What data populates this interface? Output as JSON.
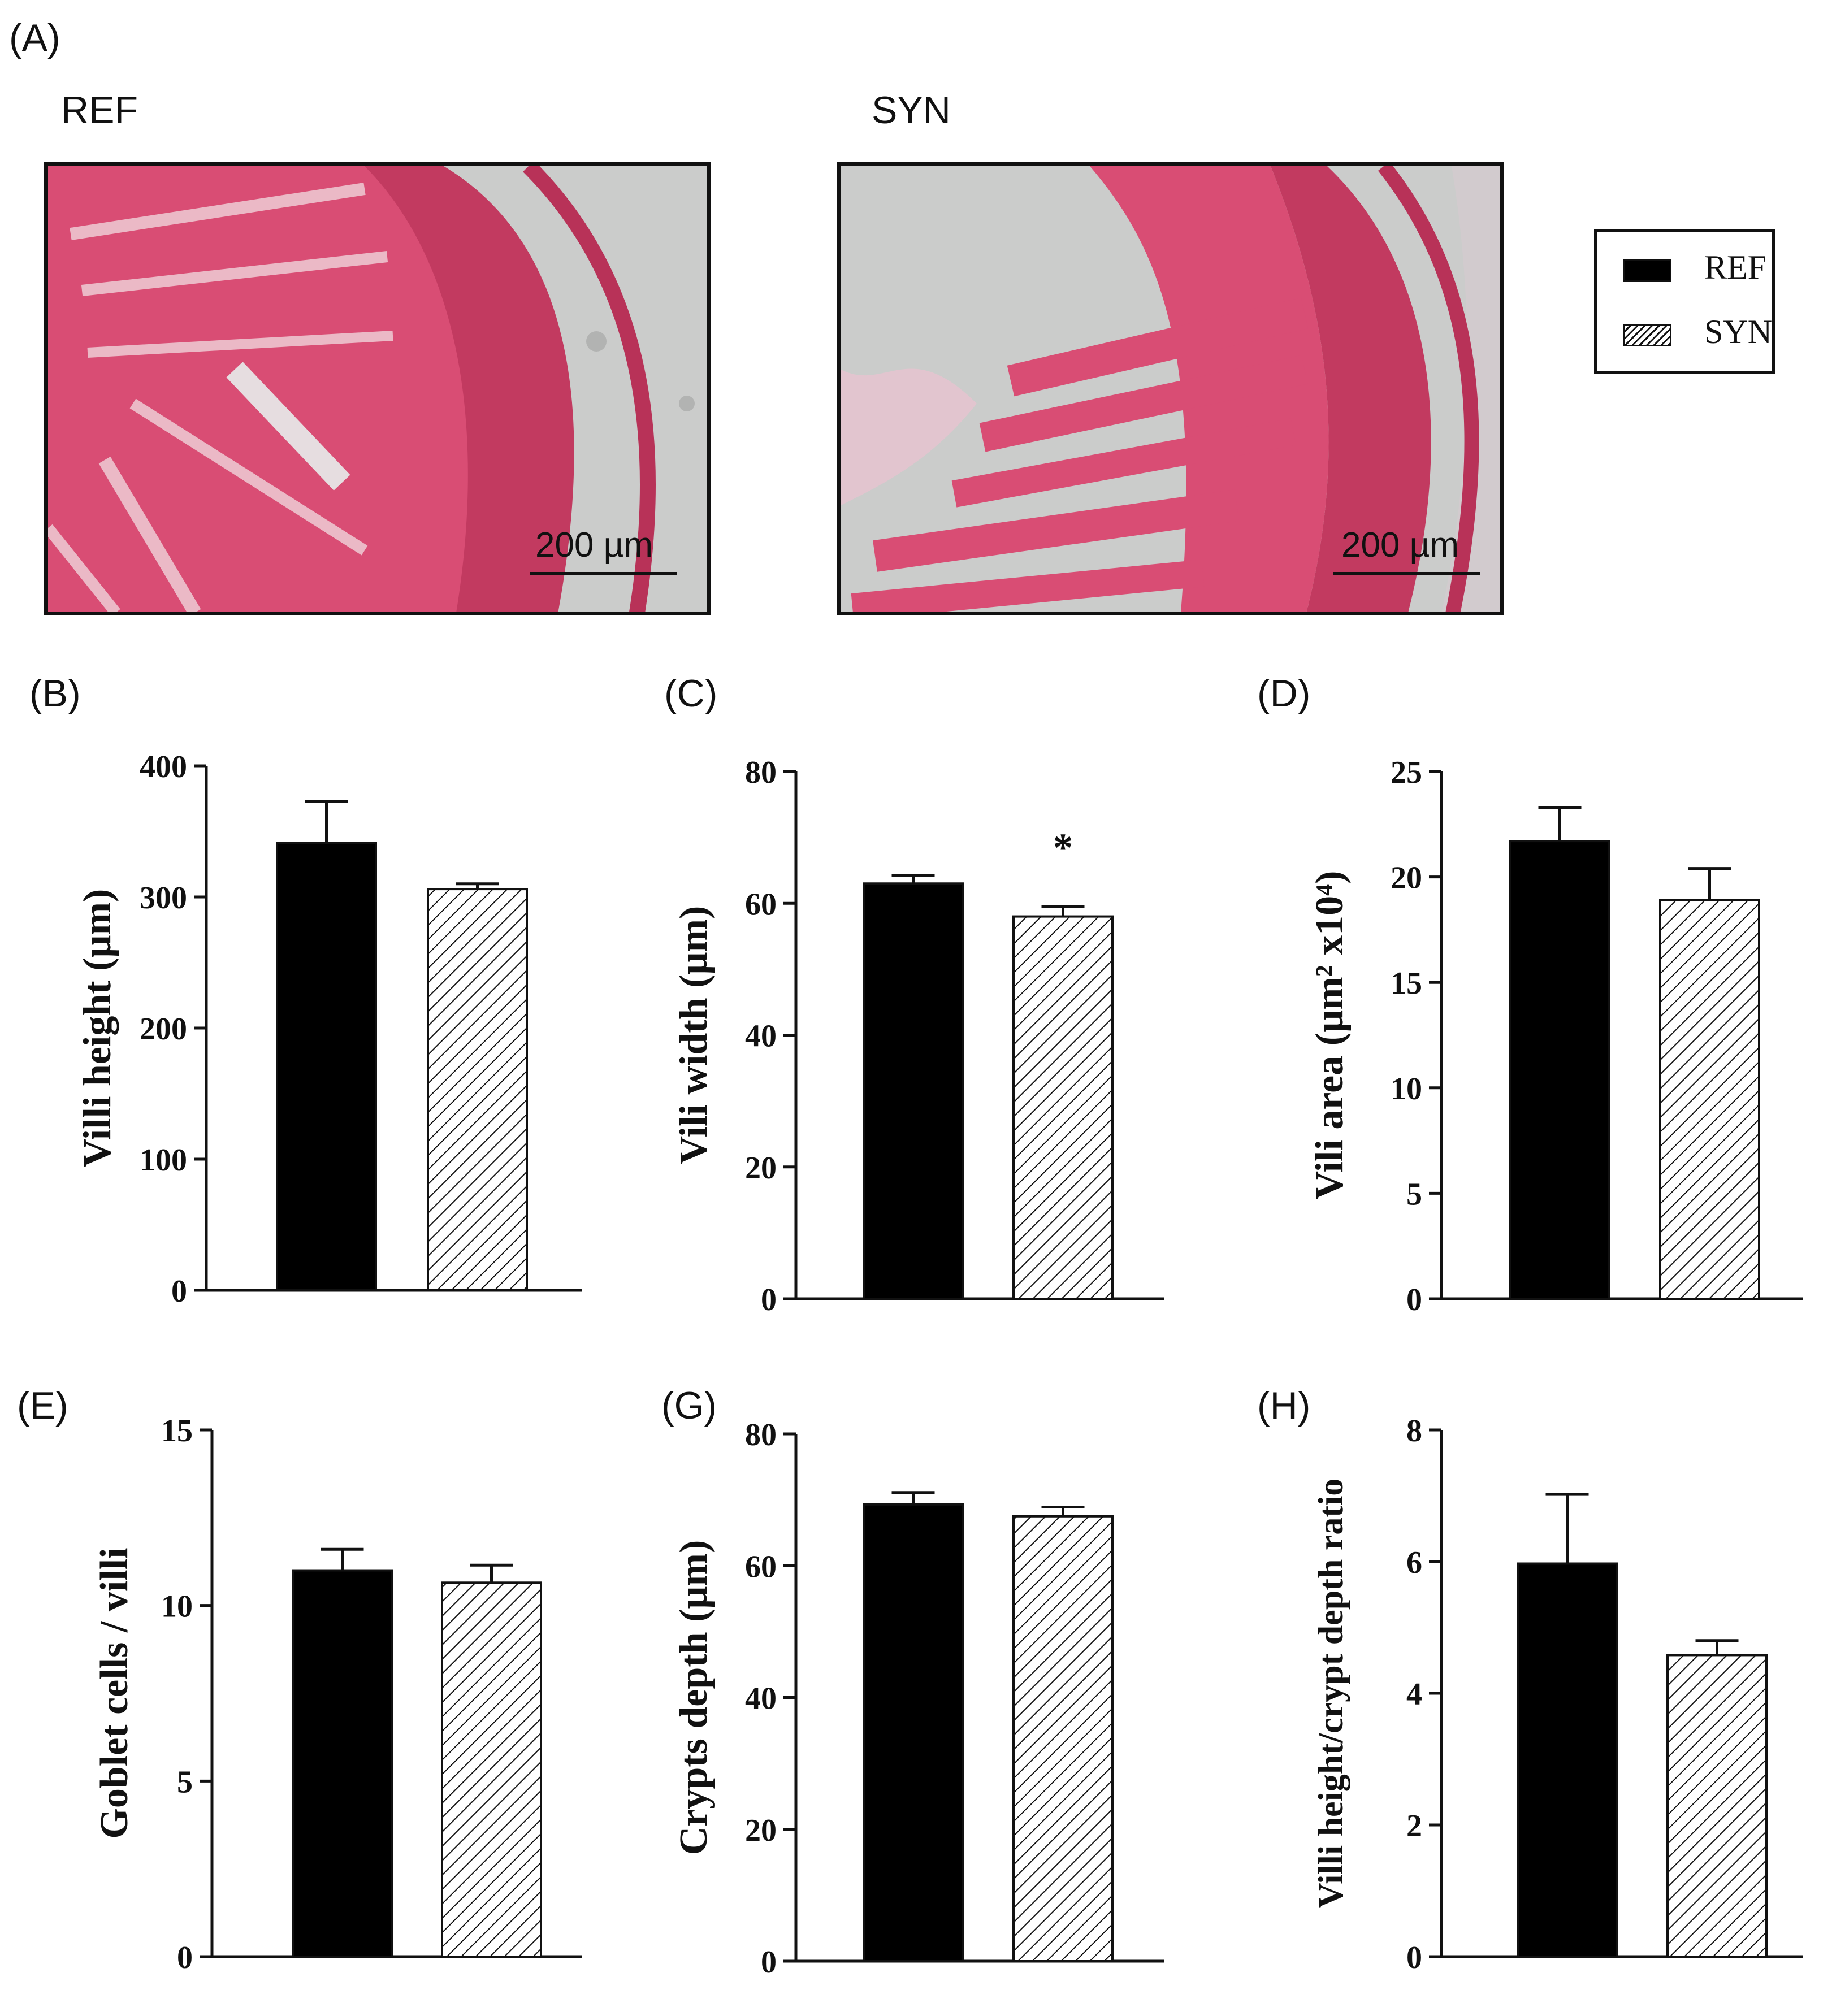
{
  "panel_labels": {
    "a": "(A)",
    "b": "(B)",
    "c": "(C)",
    "d": "(D)",
    "e": "(E)",
    "g": "(G)",
    "h": "(H)"
  },
  "micrographs": {
    "ref": {
      "caption": "REF",
      "scale": "200 µm"
    },
    "syn": {
      "caption": "SYN",
      "scale": "200 µm"
    },
    "tissue_color": "#d8486e",
    "background_color": "#c9cac9"
  },
  "legend": {
    "items": [
      {
        "label": "REF",
        "fill": "solid",
        "color": "#000000"
      },
      {
        "label": "SYN",
        "fill": "hatched",
        "color": "#000000"
      }
    ]
  },
  "chart_data": [
    {
      "id": "B",
      "type": "bar",
      "categories": [
        "REF",
        "SYN"
      ],
      "values": [
        341,
        306
      ],
      "errors": [
        32,
        4
      ],
      "ylabel": "Villi height (µm)",
      "ylim": [
        0,
        400
      ],
      "yticks": [
        0,
        100,
        200,
        300,
        400
      ],
      "annotations": []
    },
    {
      "id": "C",
      "type": "bar",
      "categories": [
        "REF",
        "SYN"
      ],
      "values": [
        63,
        58
      ],
      "errors": [
        1.2,
        1.5
      ],
      "ylabel": "Vili width (µm)",
      "ylim": [
        0,
        80
      ],
      "yticks": [
        0,
        20,
        40,
        60,
        80
      ],
      "annotations": [
        {
          "category": "SYN",
          "text": "*"
        }
      ]
    },
    {
      "id": "D",
      "type": "bar",
      "categories": [
        "REF",
        "SYN"
      ],
      "values": [
        21.7,
        18.9
      ],
      "errors": [
        1.6,
        1.5
      ],
      "ylabel": "Vili area (µm² x10⁴)",
      "ylim": [
        0,
        25
      ],
      "yticks": [
        0,
        5,
        10,
        15,
        20,
        25
      ],
      "annotations": []
    },
    {
      "id": "E",
      "type": "bar",
      "categories": [
        "REF",
        "SYN"
      ],
      "values": [
        11.0,
        10.65
      ],
      "errors": [
        0.6,
        0.5
      ],
      "ylabel": "Goblet cells / villi",
      "ylim": [
        0,
        15
      ],
      "yticks": [
        0,
        5,
        10,
        15
      ],
      "annotations": []
    },
    {
      "id": "G",
      "type": "bar",
      "categories": [
        "REF",
        "SYN"
      ],
      "values": [
        69.3,
        67.5
      ],
      "errors": [
        1.8,
        1.4
      ],
      "ylabel": "Crypts depth (µm)",
      "ylim": [
        0,
        80
      ],
      "yticks": [
        0,
        20,
        40,
        60,
        80
      ],
      "annotations": []
    },
    {
      "id": "H",
      "type": "bar",
      "categories": [
        "REF",
        "SYN"
      ],
      "values": [
        5.97,
        4.58
      ],
      "errors": [
        1.05,
        0.22
      ],
      "ylabel": "Villi height/crypt depth ratio",
      "ylim": [
        0,
        8
      ],
      "yticks": [
        0,
        2,
        4,
        6,
        8
      ],
      "annotations": []
    }
  ]
}
